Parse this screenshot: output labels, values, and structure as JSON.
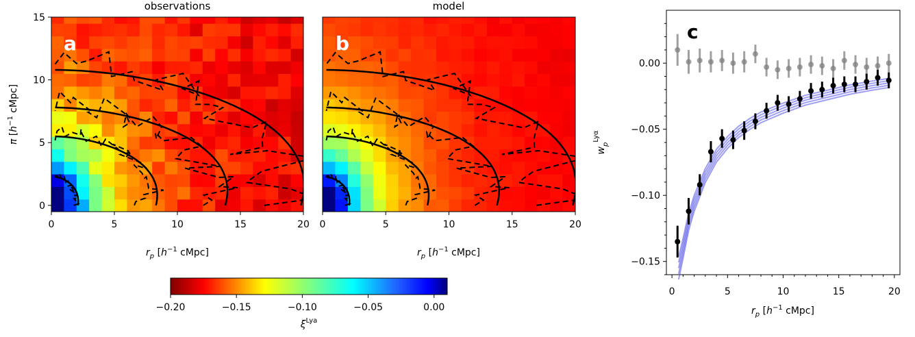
{
  "chart_data": [
    {
      "type": "heatmap",
      "panel_label": "a",
      "title": "observations",
      "xlabel": "r_p [h^-1 cMpc]",
      "ylabel": "π [h^-1 cMpc]",
      "xlim": [
        0,
        20
      ],
      "ylim": [
        -0.5,
        15
      ],
      "xticks": [
        "0",
        "5",
        "10",
        "15",
        "20"
      ],
      "yticks": [
        "0",
        "5",
        "10",
        "15"
      ],
      "contour_levels_solid": 4,
      "contour_style": {
        "model": "solid",
        "data": "dashed"
      }
    },
    {
      "type": "heatmap",
      "panel_label": "b",
      "title": "model",
      "xlabel": "r_p [h^-1 cMpc]",
      "xlim": [
        0,
        20
      ],
      "ylim": [
        -0.5,
        15
      ],
      "xticks": [
        "0",
        "5",
        "10",
        "15",
        "20"
      ]
    },
    {
      "type": "scatter",
      "panel_label": "c",
      "xlabel": "r_p [h^-1 cMpc]",
      "ylabel": "w_p^Lyα",
      "xlim": [
        -0.5,
        20.5
      ],
      "ylim": [
        -0.16,
        0.04
      ],
      "xticks": [
        "0",
        "5",
        "10",
        "15",
        "20"
      ],
      "yticks": [
        "0.00",
        "−0.05",
        "−0.10",
        "−0.15"
      ],
      "series": [
        {
          "color": "#000000",
          "x": [
            0.5,
            1.5,
            2.5,
            3.5,
            4.5,
            5.5,
            6.5,
            7.5,
            8.5,
            9.5,
            10.5,
            11.5,
            12.5,
            13.5,
            14.5,
            15.5,
            16.5,
            17.5,
            18.5,
            19.5
          ],
          "y": [
            -0.135,
            -0.112,
            -0.092,
            -0.067,
            -0.057,
            -0.058,
            -0.051,
            -0.044,
            -0.036,
            -0.03,
            -0.031,
            -0.027,
            -0.021,
            -0.02,
            -0.017,
            -0.016,
            -0.016,
            -0.014,
            -0.011,
            -0.013
          ],
          "err": [
            0.012,
            0.01,
            0.008,
            0.008,
            0.007,
            0.007,
            0.007,
            0.006,
            0.006,
            0.006,
            0.006,
            0.006,
            0.006,
            0.006,
            0.006,
            0.006,
            0.006,
            0.006,
            0.006,
            0.006
          ]
        },
        {
          "color": "#808080",
          "x": [
            0.5,
            1.5,
            2.5,
            3.5,
            4.5,
            5.5,
            6.5,
            7.5,
            8.5,
            9.5,
            10.5,
            11.5,
            12.5,
            13.5,
            14.5,
            15.5,
            16.5,
            17.5,
            18.5,
            19.5
          ],
          "y": [
            0.01,
            0.001,
            0.002,
            0.001,
            0.002,
            0.0,
            0.001,
            0.007,
            -0.003,
            -0.005,
            -0.004,
            -0.003,
            -0.001,
            -0.002,
            -0.004,
            0.002,
            -0.001,
            -0.003,
            -0.002,
            0.0
          ],
          "err": [
            0.012,
            0.009,
            0.009,
            0.008,
            0.008,
            0.008,
            0.008,
            0.007,
            0.007,
            0.007,
            0.007,
            0.007,
            0.007,
            0.007,
            0.007,
            0.007,
            0.007,
            0.007,
            0.007,
            0.007
          ]
        },
        {
          "color": "#5050e6",
          "type": "band",
          "x": [
            0.6,
            1,
            1.5,
            2,
            3,
            4,
            5,
            6,
            7,
            8,
            10,
            12,
            14,
            16,
            18,
            19.5
          ],
          "y": [
            -0.155,
            -0.14,
            -0.12,
            -0.106,
            -0.085,
            -0.07,
            -0.06,
            -0.052,
            -0.046,
            -0.041,
            -0.034,
            -0.028,
            -0.024,
            -0.02,
            -0.017,
            -0.015
          ]
        }
      ]
    }
  ],
  "colorbar": {
    "label": "ξ^Lya",
    "ticks": [
      "−0.20",
      "−0.15",
      "−0.10",
      "−0.05",
      "0.00"
    ],
    "range": [
      -0.2,
      0.01
    ],
    "colormap": "jet_r"
  },
  "colors": {
    "axes": "#000000",
    "model_band": "#5050e6"
  }
}
